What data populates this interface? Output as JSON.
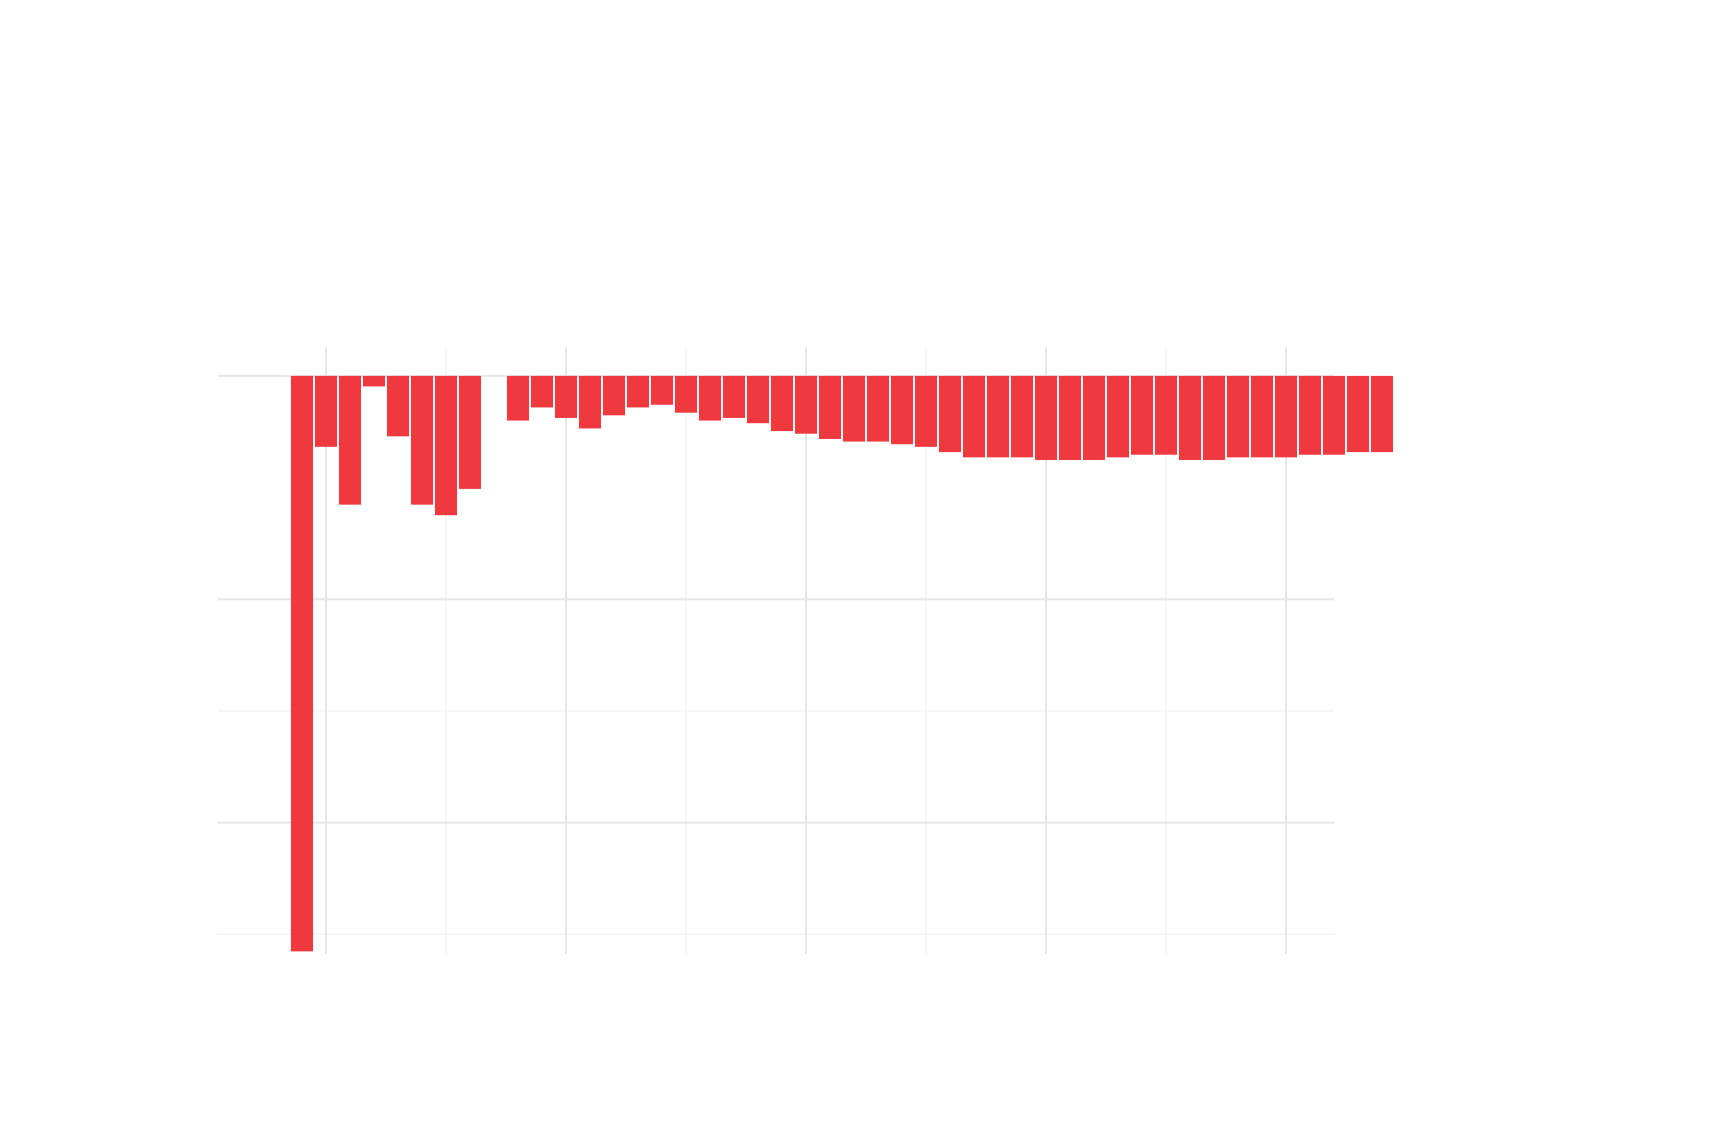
{
  "chart_data": {
    "type": "bar",
    "title": "",
    "xlabel": "",
    "ylabel": "",
    "xlim": [
      0.5,
      47
    ],
    "ylim": [
      -2.2,
      0.11
    ],
    "x_major_ticks": [
      5,
      15,
      25,
      35,
      45
    ],
    "x_minor_ticks": [
      10,
      20,
      30,
      40
    ],
    "y_major_ticks": [
      0,
      -0.85,
      -1.7
    ],
    "y_minor_ticks": [
      -1.275,
      -2.125
    ],
    "grid": true,
    "bar_color": "#f0383f",
    "x": [
      4,
      5,
      6,
      7,
      8,
      9,
      10,
      11,
      12,
      13,
      14,
      15,
      16,
      17,
      18,
      19,
      20,
      21,
      22,
      23,
      24,
      25,
      26,
      27,
      28,
      29,
      30,
      31,
      32,
      33,
      34,
      35,
      36,
      37,
      38,
      39,
      40,
      41,
      42,
      43,
      44,
      45,
      46,
      47,
      48,
      49
    ],
    "values": [
      -2.19,
      -0.27,
      -0.49,
      -0.04,
      -0.23,
      -0.49,
      -0.53,
      -0.43,
      null,
      -0.17,
      -0.12,
      -0.16,
      -0.2,
      -0.15,
      -0.12,
      -0.11,
      -0.14,
      -0.17,
      -0.16,
      -0.18,
      -0.21,
      -0.22,
      -0.24,
      -0.25,
      -0.25,
      -0.26,
      -0.27,
      -0.29,
      -0.31,
      -0.31,
      -0.31,
      -0.32,
      -0.32,
      -0.32,
      -0.31,
      -0.3,
      -0.3,
      -0.32,
      -0.32,
      -0.31,
      -0.31,
      -0.31,
      -0.3,
      -0.3,
      -0.29,
      -0.29
    ]
  }
}
